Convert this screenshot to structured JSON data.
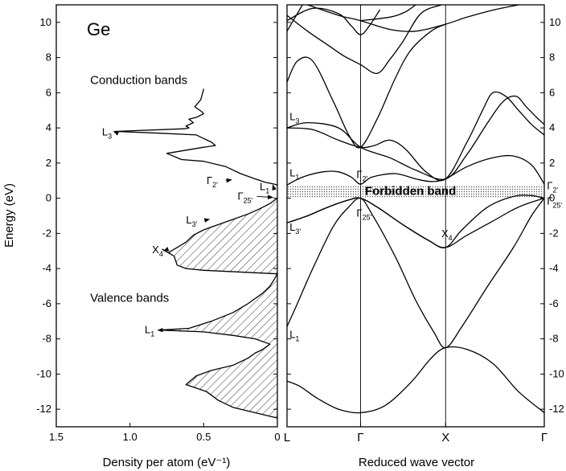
{
  "chart_data": [
    {
      "type": "area",
      "title": "Ge",
      "xlabel": "Density per atom (eV⁻¹)",
      "ylabel": "Energy (eV)",
      "xlim": [
        1.5,
        0
      ],
      "ylim": [
        -13,
        11
      ],
      "x_ticks": [
        "1.5",
        "1.0",
        "0.5",
        "0"
      ],
      "x_tick_values": [
        1.5,
        1.0,
        0.5,
        0
      ],
      "y_ticks": [
        -12,
        -10,
        -8,
        -6,
        -4,
        -2,
        0,
        2,
        4,
        6,
        8,
        10
      ],
      "y_tick_labels": [
        "-12",
        "-10",
        "-8",
        "-6",
        "-4",
        "-2",
        "0",
        "2",
        "4",
        "6",
        "8",
        "10"
      ],
      "series": [
        {
          "band": "conduction",
          "points": [
            [
              0.5,
              6.2
            ],
            [
              0.52,
              5.6
            ],
            [
              0.56,
              5.2
            ],
            [
              0.51,
              4.9
            ],
            [
              0.5,
              4.8
            ],
            [
              0.55,
              4.6
            ],
            [
              0.6,
              4.5
            ],
            [
              0.57,
              4.3
            ],
            [
              0.62,
              4.1
            ],
            [
              0.6,
              4.0
            ],
            [
              0.63,
              3.95
            ],
            [
              1.1,
              3.8
            ],
            [
              0.8,
              3.7
            ],
            [
              0.55,
              3.6
            ],
            [
              0.5,
              3.4
            ],
            [
              0.45,
              3.2
            ],
            [
              0.42,
              3.0
            ],
            [
              0.5,
              2.9
            ],
            [
              0.75,
              2.55
            ],
            [
              0.65,
              2.2
            ],
            [
              0.5,
              2.1
            ],
            [
              0.35,
              1.8
            ],
            [
              0.25,
              1.4
            ],
            [
              0.15,
              1.1
            ],
            [
              0.08,
              0.9
            ],
            [
              0.02,
              0.8
            ],
            [
              0.0,
              0.75
            ]
          ]
        },
        {
          "band": "valence",
          "points": [
            [
              0.0,
              0.0
            ],
            [
              0.05,
              -0.3
            ],
            [
              0.12,
              -0.6
            ],
            [
              0.2,
              -0.9
            ],
            [
              0.3,
              -1.2
            ],
            [
              0.4,
              -1.5
            ],
            [
              0.5,
              -1.8
            ],
            [
              0.57,
              -2.1
            ],
            [
              0.62,
              -2.5
            ],
            [
              0.68,
              -2.8
            ],
            [
              0.74,
              -3.1
            ],
            [
              0.78,
              -2.9
            ],
            [
              0.72,
              -3.2
            ],
            [
              0.7,
              -3.3
            ],
            [
              0.68,
              -3.8
            ],
            [
              0.62,
              -4.0
            ],
            [
              0.5,
              -4.1
            ],
            [
              0.0,
              -4.3
            ],
            [
              0.02,
              -4.6
            ],
            [
              0.05,
              -5.0
            ],
            [
              0.1,
              -5.4
            ],
            [
              0.2,
              -6.0
            ],
            [
              0.3,
              -6.5
            ],
            [
              0.45,
              -7.0
            ],
            [
              0.6,
              -7.4
            ],
            [
              0.8,
              -7.5
            ],
            [
              0.5,
              -7.6
            ],
            [
              0.3,
              -7.8
            ],
            [
              0.15,
              -8.0
            ],
            [
              0.05,
              -8.3
            ],
            [
              0.1,
              -8.6
            ],
            [
              0.15,
              -8.8
            ],
            [
              0.2,
              -9.1
            ],
            [
              0.3,
              -9.5
            ],
            [
              0.45,
              -9.8
            ],
            [
              0.55,
              -10.1
            ],
            [
              0.62,
              -10.6
            ],
            [
              0.55,
              -10.8
            ],
            [
              0.48,
              -11.0
            ],
            [
              0.4,
              -11.5
            ],
            [
              0.3,
              -11.9
            ],
            [
              0.15,
              -12.2
            ],
            [
              0.0,
              -12.5
            ]
          ]
        }
      ],
      "annotations": [
        {
          "text": "Conduction bands",
          "x": 1.27,
          "y": 6.5
        },
        {
          "text": "Valence bands",
          "x": 1.27,
          "y": -5.9
        },
        {
          "text": "L",
          "sub": "3",
          "x": 1.19,
          "y": 3.75,
          "arrow_to": [
            1.1,
            3.8
          ]
        },
        {
          "text": "Γ",
          "sub": "2'",
          "x": 0.48,
          "y": 1.0,
          "arrow_to": [
            0.3,
            1.05
          ]
        },
        {
          "text": "L",
          "sub": "1",
          "x": 0.12,
          "y": 0.65,
          "arrow_to": [
            0.02,
            0.75
          ]
        },
        {
          "text": "Γ",
          "sub": "25'",
          "x": 0.27,
          "y": 0.1,
          "arrow_to": [
            0.02,
            0.05
          ]
        },
        {
          "text": "L",
          "sub": "3'",
          "x": 0.62,
          "y": -1.25,
          "arrow_to": [
            0.45,
            -1.2
          ]
        },
        {
          "text": "X",
          "sub": "4",
          "x": 0.85,
          "y": -2.95,
          "arrow_to": [
            0.76,
            -3.0
          ]
        },
        {
          "text": "L",
          "sub": "1",
          "x": 0.9,
          "y": -7.5,
          "arrow_to": [
            0.8,
            -7.5
          ]
        }
      ]
    },
    {
      "type": "line",
      "title": "",
      "xlabel": "Reduced wave vector",
      "ylabel": "",
      "xlim": [
        0,
        1
      ],
      "ylim": [
        -13,
        11
      ],
      "x_ticks": [
        "L",
        "Γ",
        "X",
        "Γ"
      ],
      "x_tick_values": [
        0,
        0.2857,
        0.6164,
        1
      ],
      "y_ticks": [
        -12,
        -10,
        -8,
        -6,
        -4,
        -2,
        0,
        2,
        4,
        6,
        8,
        10
      ],
      "y_tick_labels": [
        "-12",
        "-10",
        "-8",
        "-6",
        "-4",
        "-2",
        "0",
        "2",
        "4",
        "6",
        "8",
        "10"
      ],
      "forbidden_band": {
        "label": "Forbidden band",
        "ymin": 0,
        "ymax": 0.75
      },
      "series": [
        {
          "points": [
            [
              0,
              -10.4
            ],
            [
              0.05,
              -10.7
            ],
            [
              0.12,
              -11.4
            ],
            [
              0.2,
              -12.0
            ],
            [
              0.2857,
              -12.2
            ],
            [
              0.38,
              -11.8
            ],
            [
              0.48,
              -10.5
            ],
            [
              0.56,
              -9.1
            ],
            [
              0.6164,
              -8.5
            ],
            [
              0.7,
              -8.6
            ],
            [
              0.8,
              -9.4
            ],
            [
              0.9,
              -11.0
            ],
            [
              1,
              -12.2
            ]
          ]
        },
        {
          "points": [
            [
              0,
              -7.3
            ],
            [
              0.04,
              -6.0
            ],
            [
              0.1,
              -4.0
            ],
            [
              0.18,
              -1.6
            ],
            [
              0.24,
              -0.5
            ],
            [
              0.2857,
              0
            ],
            [
              0.33,
              -0.9
            ],
            [
              0.42,
              -3.3
            ],
            [
              0.5,
              -5.8
            ],
            [
              0.57,
              -7.6
            ],
            [
              0.6164,
              -8.5
            ],
            [
              0.68,
              -7.3
            ],
            [
              0.78,
              -5.0
            ],
            [
              0.88,
              -2.8
            ],
            [
              0.95,
              -1.0
            ],
            [
              1,
              0
            ]
          ]
        },
        {
          "points": [
            [
              0,
              -1.4
            ],
            [
              0.08,
              -1.0
            ],
            [
              0.16,
              -0.5
            ],
            [
              0.24,
              -0.1
            ],
            [
              0.2857,
              0
            ],
            [
              0.35,
              -0.5
            ],
            [
              0.45,
              -1.5
            ],
            [
              0.55,
              -2.4
            ],
            [
              0.6164,
              -2.8
            ],
            [
              0.7,
              -2.1
            ],
            [
              0.8,
              -1.3
            ],
            [
              0.9,
              -0.5
            ],
            [
              1,
              0
            ]
          ]
        },
        {
          "points": [
            [
              0,
              -1.4
            ],
            [
              0.08,
              -1.0
            ],
            [
              0.16,
              -0.5
            ],
            [
              0.24,
              -0.1
            ],
            [
              0.2857,
              0
            ],
            [
              0.35,
              -0.5
            ],
            [
              0.45,
              -1.5
            ],
            [
              0.55,
              -2.4
            ],
            [
              0.6164,
              -2.8
            ],
            [
              0.68,
              -1.8
            ],
            [
              0.78,
              -0.5
            ],
            [
              0.88,
              0.1
            ],
            [
              0.95,
              0.15
            ],
            [
              1,
              0
            ]
          ]
        },
        {
          "points": [
            [
              0,
              0.75
            ],
            [
              0.06,
              1.2
            ],
            [
              0.14,
              1.5
            ],
            [
              0.2,
              1.5
            ],
            [
              0.25,
              1.2
            ],
            [
              0.2857,
              0.8
            ],
            [
              0.33,
              1.2
            ],
            [
              0.42,
              1.4
            ],
            [
              0.5,
              1.1
            ],
            [
              0.56,
              0.95
            ],
            [
              0.6164,
              1.1
            ],
            [
              0.7,
              1.8
            ],
            [
              0.8,
              2.3
            ],
            [
              0.88,
              2.4
            ],
            [
              0.95,
              1.9
            ],
            [
              1,
              0.8
            ]
          ]
        },
        {
          "points": [
            [
              0,
              4.0
            ],
            [
              0.1,
              3.9
            ],
            [
              0.2,
              3.3
            ],
            [
              0.2857,
              2.9
            ],
            [
              0.34,
              3.0
            ],
            [
              0.4,
              3.3
            ],
            [
              0.46,
              2.8
            ],
            [
              0.54,
              1.5
            ],
            [
              0.6164,
              1.1
            ],
            [
              0.7,
              3.2
            ],
            [
              0.76,
              5.0
            ],
            [
              0.8,
              6.0
            ],
            [
              0.85,
              5.8
            ],
            [
              0.9,
              5.0
            ],
            [
              0.95,
              4.2
            ],
            [
              1,
              3.6
            ]
          ]
        },
        {
          "points": [
            [
              0,
              4.0
            ],
            [
              0.08,
              4.3
            ],
            [
              0.2,
              4.0
            ],
            [
              0.2857,
              2.9
            ],
            [
              0.4,
              2.3
            ],
            [
              0.5,
              1.6
            ],
            [
              0.6164,
              1.1
            ],
            [
              0.7,
              2.5
            ],
            [
              0.78,
              4.3
            ],
            [
              0.84,
              5.5
            ],
            [
              0.89,
              5.8
            ],
            [
              0.93,
              5.2
            ],
            [
              0.97,
              4.6
            ],
            [
              1,
              4.2
            ]
          ]
        },
        {
          "points": [
            [
              0,
              6.6
            ],
            [
              0.04,
              7.8
            ],
            [
              0.1,
              7.8
            ],
            [
              0.18,
              5.5
            ],
            [
              0.24,
              3.6
            ],
            [
              0.2857,
              2.9
            ],
            [
              0.35,
              4.5
            ],
            [
              0.42,
              6.8
            ],
            [
              0.48,
              8.4
            ],
            [
              0.56,
              9.5
            ],
            [
              0.6164,
              9.9
            ]
          ]
        },
        {
          "points": [
            [
              0,
              9.5
            ],
            [
              0.06,
              11.0
            ]
          ]
        },
        {
          "points": [
            [
              0,
              10.1
            ],
            [
              0.1,
              10.8
            ],
            [
              0.2,
              10.5
            ],
            [
              0.25,
              9.8
            ],
            [
              0.2857,
              9.3
            ],
            [
              0.32,
              9.8
            ],
            [
              0.36,
              10.7
            ]
          ]
        },
        {
          "points": [
            [
              0,
              10.4
            ],
            [
              0.08,
              9.5
            ],
            [
              0.16,
              8.7
            ],
            [
              0.22,
              8.1
            ],
            [
              0.2857,
              7.6
            ],
            [
              0.35,
              7.1
            ],
            [
              0.4,
              7.9
            ],
            [
              0.45,
              8.9
            ],
            [
              0.52,
              10.5
            ],
            [
              0.6,
              11.0
            ]
          ]
        },
        {
          "points": [
            [
              0.08,
              11.0
            ],
            [
              0.2,
              10.4
            ],
            [
              0.2857,
              10.1
            ],
            [
              0.4,
              9.6
            ],
            [
              0.5,
              9.5
            ],
            [
              0.6164,
              9.9
            ],
            [
              0.7,
              10.3
            ],
            [
              0.8,
              10.7
            ],
            [
              0.9,
              11.0
            ]
          ]
        },
        {
          "points": [
            [
              0.2857,
              10.1
            ],
            [
              0.4,
              10.3
            ],
            [
              0.46,
              10.6
            ],
            [
              0.5,
              11.0
            ]
          ]
        }
      ],
      "annotations": [
        {
          "text": "L",
          "sub": "3",
          "x": 0.01,
          "y": 4.45
        },
        {
          "text": "L",
          "sub": "1",
          "x": 0.01,
          "y": 1.25
        },
        {
          "text": "L",
          "sub": "3'",
          "x": 0.01,
          "y": -1.85
        },
        {
          "text": "L",
          "sub": "1",
          "x": 0.01,
          "y": -7.95
        },
        {
          "text": "Γ",
          "sub": "2'",
          "x": 0.27,
          "y": 1.15
        },
        {
          "text": "Γ",
          "sub": "25'",
          "x": 0.27,
          "y": -1.05
        },
        {
          "text": "X",
          "sub": "4",
          "x": 0.6,
          "y": -2.2
        },
        {
          "text": "Γ",
          "sub": "2'",
          "x": 1.01,
          "y": 0.5
        },
        {
          "text": "Γ",
          "sub": "25'",
          "x": 1.01,
          "y": -0.35
        }
      ]
    }
  ]
}
